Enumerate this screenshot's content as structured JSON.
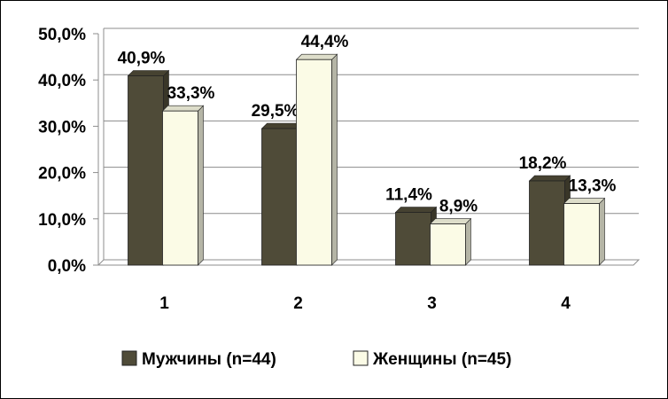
{
  "chart_data": {
    "type": "bar",
    "categories": [
      "1",
      "2",
      "3",
      "4"
    ],
    "series": [
      {
        "name": "Мужчины (n=44)",
        "values": [
          40.9,
          29.5,
          11.4,
          18.2
        ],
        "labels": [
          "40,9%",
          "29,5%",
          "11,4%",
          "18,2%"
        ],
        "color": "#4f4b38"
      },
      {
        "name": "Женщины (n=45)",
        "values": [
          33.3,
          44.4,
          8.9,
          13.3
        ],
        "labels": [
          "33,3%",
          "44,4%",
          "8,9%",
          "13,3%"
        ],
        "color": "#fbfbe6"
      }
    ],
    "yticks": [
      "0,0%",
      "10,0%",
      "20,0%",
      "30,0%",
      "40,0%",
      "50,0%"
    ],
    "ylim": [
      0,
      50
    ],
    "grid": true,
    "legend": "bottom",
    "title": "",
    "xlabel": "",
    "ylabel": ""
  }
}
